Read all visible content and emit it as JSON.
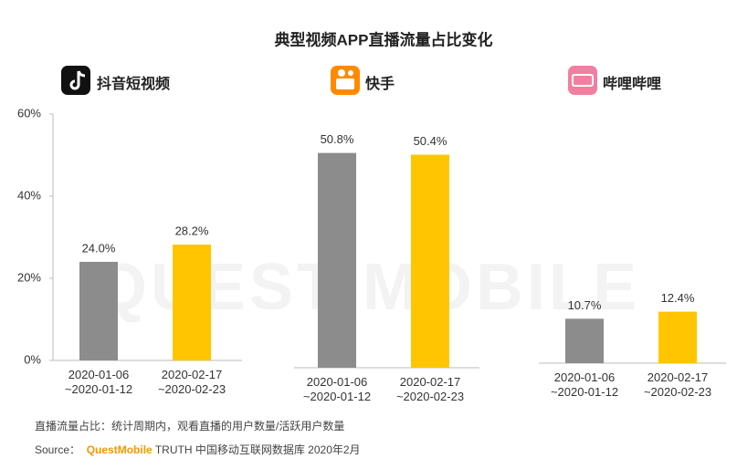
{
  "title": "典型视频APP直播流量占比变化",
  "watermark": "QUEST MOBILE",
  "note": "直播流量占比：统计周期内，观看直播的用户数量/活跃用户数量",
  "source_label": "Source：",
  "source_brand": "QuestMobile",
  "source_text": "TRUTH 中国移动互联网数据库 2020年2月",
  "chart_data": [
    {
      "type": "bar",
      "title": "抖音短视频",
      "categories": [
        "2020-01-06\n~2020-01-12",
        "2020-02-17\n~2020-02-23"
      ],
      "values": [
        24.0,
        28.2
      ],
      "value_labels": [
        "24.0%",
        "28.2%"
      ],
      "colors": [
        "#8c8c8c",
        "#ffc600"
      ],
      "ylim": [
        0,
        60
      ],
      "yticks": [
        {
          "value": 0,
          "label": "0%"
        },
        {
          "value": 20,
          "label": "20%"
        },
        {
          "value": 40,
          "label": "40%"
        },
        {
          "value": 60,
          "label": "60%"
        }
      ]
    },
    {
      "type": "bar",
      "title": "快手",
      "categories": [
        "2020-01-06\n~2020-01-12",
        "2020-02-17\n~2020-02-23"
      ],
      "values": [
        50.8,
        50.4
      ],
      "value_labels": [
        "50.8%",
        "50.4%"
      ],
      "colors": [
        "#8c8c8c",
        "#ffc600"
      ],
      "ylim": [
        0,
        60
      ]
    },
    {
      "type": "bar",
      "title": "哔哩哔哩",
      "categories": [
        "2020-01-06\n~2020-01-12",
        "2020-02-17\n~2020-02-23"
      ],
      "values": [
        10.7,
        12.4
      ],
      "value_labels": [
        "10.7%",
        "12.4%"
      ],
      "colors": [
        "#8c8c8c",
        "#ffc600"
      ],
      "ylim": [
        0,
        60
      ]
    }
  ]
}
